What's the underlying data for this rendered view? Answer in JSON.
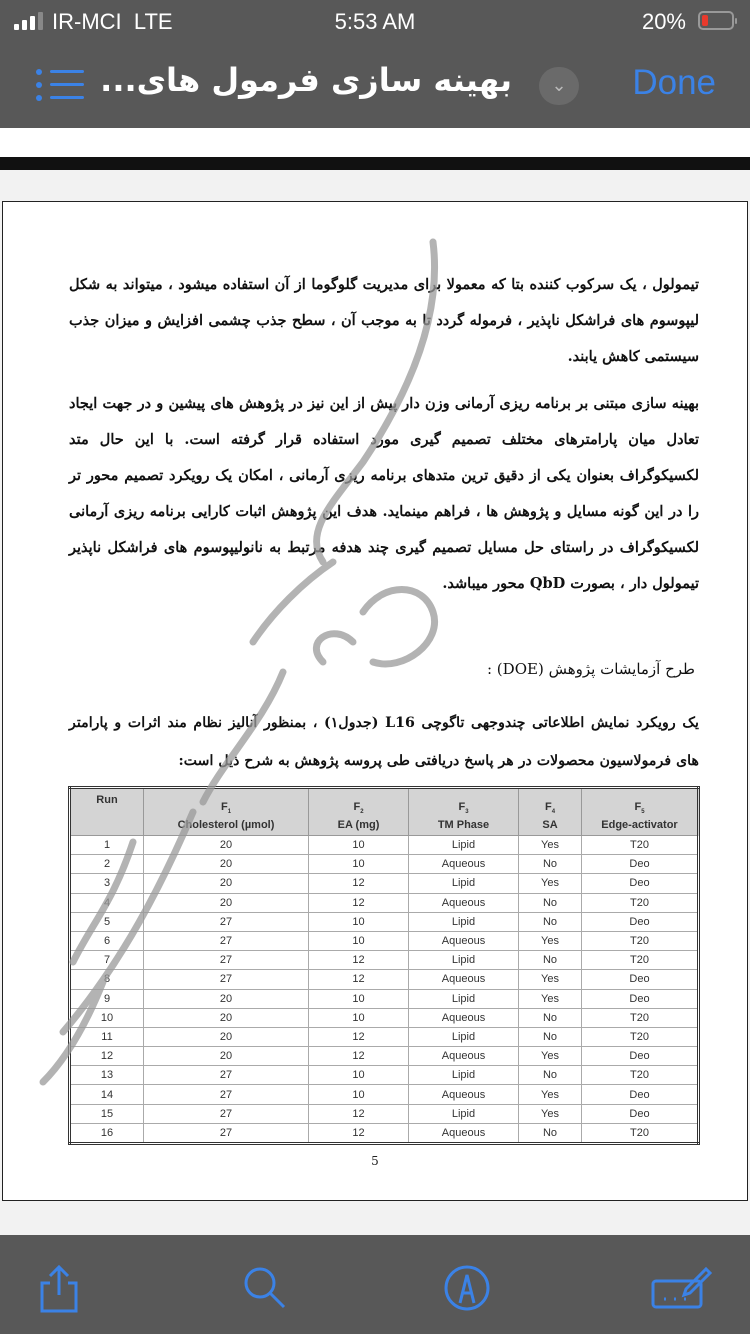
{
  "status_bar": {
    "carrier": "IR-MCI",
    "network": "LTE",
    "time": "5:53 AM",
    "battery_percent": "20%",
    "battery_level": 0.2,
    "battery_color": "#e8392c"
  },
  "nav": {
    "title": "بهینه سازی فرمول های...",
    "done_label": "Done",
    "accent_color": "#3b82e6"
  },
  "document": {
    "paragraphs": [
      "تیمولول ، یک سرکوب کننده بتا که معمولا برای مدیریت گلوگوما از آن استفاده میشود ، میتواند به شکل لیپوسوم های فراشکل ناپذیر ، فرموله گردد تا به موجب آن ، سطح جذب چشمی افزایش و میزان جذب سیستمی کاهش یابند.",
      "بهینه سازی مبتنی بر برنامه ریزی آرمانی وزن دار پیش از این نیز در پژوهش های پیشین و در جهت ایجاد تعادل میان پارامترهای مختلف تصمیم گیری مورد استفاده قرار گرفته است. با این حال متد لکسیکوگراف بعنوان یکی از دقیق ترین متدهای برنامه ریزی آرمانی ، امکان یک رویکرد تصمیم محور تر را در این گونه مسایل و پژوهش ها ، فراهم مینماید. هدف این پژوهش اثبات کارایی برنامه ریزی آرمانی لکسیکوگراف در راستای حل مسایل تصمیم گیری چند هدفه مرتبط به نانولیپوسوم های فراشکل ناپذیر تیمولول دار ، بصورت QbD محور میباشد."
    ],
    "heading": "طرح آزمایشات پژوهش  (DOE) :",
    "intro": "یک رویکرد نمایش اطلاعاتی چندوجهی تاگوچی L16 (جدول۱) ، بمنظور آنالیز نظام مند اثرات و پارامتر های فرمولاسیون محصولات در هر پاسخ دریافتی طی پروسه پژوهش به شرح ذیل است:",
    "table": {
      "headers": [
        {
          "top": "",
          "label": "Run"
        },
        {
          "top": "F1",
          "label": "Cholesterol (µmol)"
        },
        {
          "top": "F2",
          "label": "EA (mg)"
        },
        {
          "top": "F3",
          "label": "TM Phase"
        },
        {
          "top": "F4",
          "label": "SA"
        },
        {
          "top": "F5",
          "label": "Edge-activator"
        }
      ],
      "rows": [
        [
          "1",
          "20",
          "10",
          "Lipid",
          "Yes",
          "T20"
        ],
        [
          "2",
          "20",
          "10",
          "Aqueous",
          "No",
          "Deo"
        ],
        [
          "3",
          "20",
          "12",
          "Lipid",
          "Yes",
          "Deo"
        ],
        [
          "4",
          "20",
          "12",
          "Aqueous",
          "No",
          "T20"
        ],
        [
          "5",
          "27",
          "10",
          "Lipid",
          "No",
          "Deo"
        ],
        [
          "6",
          "27",
          "10",
          "Aqueous",
          "Yes",
          "T20"
        ],
        [
          "7",
          "27",
          "12",
          "Lipid",
          "No",
          "T20"
        ],
        [
          "8",
          "27",
          "12",
          "Aqueous",
          "Yes",
          "Deo"
        ],
        [
          "9",
          "20",
          "10",
          "Lipid",
          "Yes",
          "Deo"
        ],
        [
          "10",
          "20",
          "10",
          "Aqueous",
          "No",
          "T20"
        ],
        [
          "11",
          "20",
          "12",
          "Lipid",
          "No",
          "T20"
        ],
        [
          "12",
          "20",
          "12",
          "Aqueous",
          "Yes",
          "Deo"
        ],
        [
          "13",
          "27",
          "10",
          "Lipid",
          "No",
          "T20"
        ],
        [
          "14",
          "27",
          "10",
          "Aqueous",
          "Yes",
          "Deo"
        ],
        [
          "15",
          "27",
          "12",
          "Lipid",
          "Yes",
          "Deo"
        ],
        [
          "16",
          "27",
          "12",
          "Aqueous",
          "No",
          "T20"
        ]
      ]
    },
    "page_number": "5"
  },
  "toolbar": {
    "icons": [
      "share-icon",
      "search-icon",
      "markup-icon",
      "keyboard-icon"
    ]
  }
}
